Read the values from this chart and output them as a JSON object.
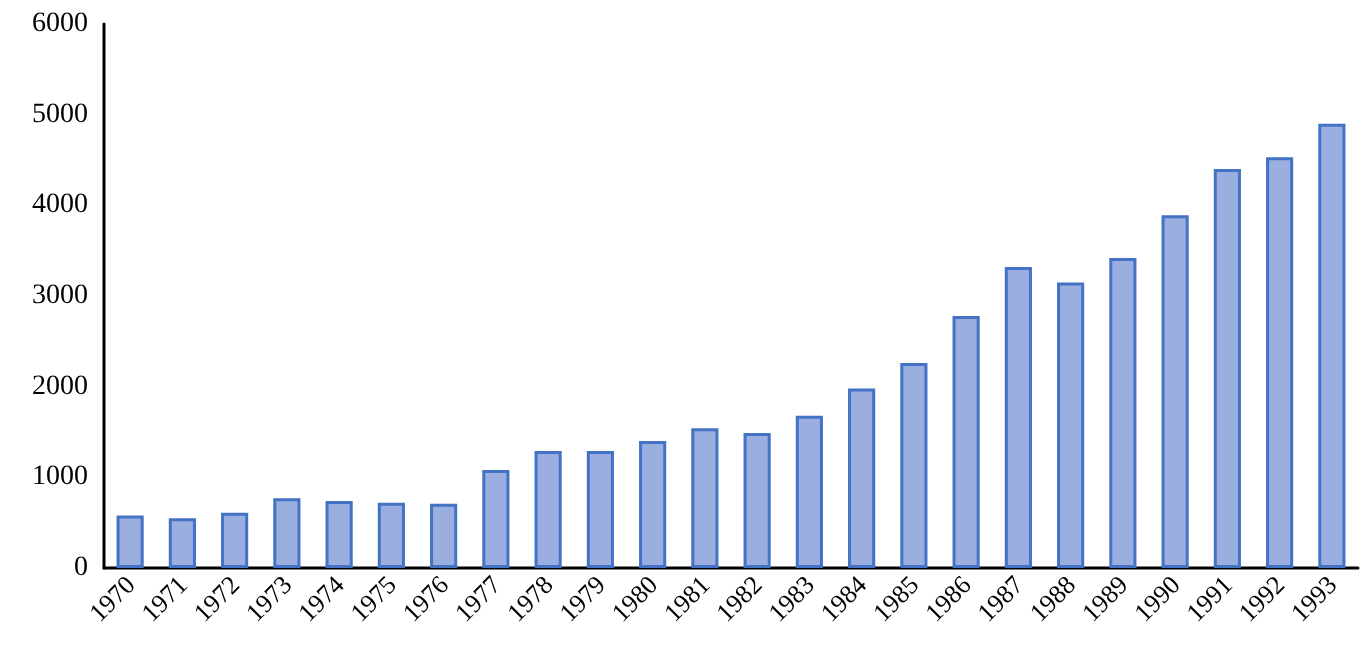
{
  "chart_data": {
    "type": "bar",
    "categories": [
      "1970",
      "1971",
      "1972",
      "1973",
      "1974",
      "1975",
      "1976",
      "1977",
      "1978",
      "1979",
      "1980",
      "1981",
      "1982",
      "1983",
      "1984",
      "1985",
      "1986",
      "1987",
      "1988",
      "1989",
      "1990",
      "1991",
      "1992",
      "1993"
    ],
    "values": [
      580,
      550,
      610,
      770,
      740,
      720,
      710,
      1080,
      1290,
      1290,
      1400,
      1540,
      1490,
      1680,
      1980,
      2260,
      2780,
      3320,
      3150,
      3420,
      3890,
      4400,
      4530,
      4900
    ],
    "color": "#9aaedf",
    "ylim": [
      0,
      6000
    ],
    "yticks": [
      0,
      1000,
      2000,
      3000,
      4000,
      5000,
      6000
    ],
    "grid": false
  }
}
